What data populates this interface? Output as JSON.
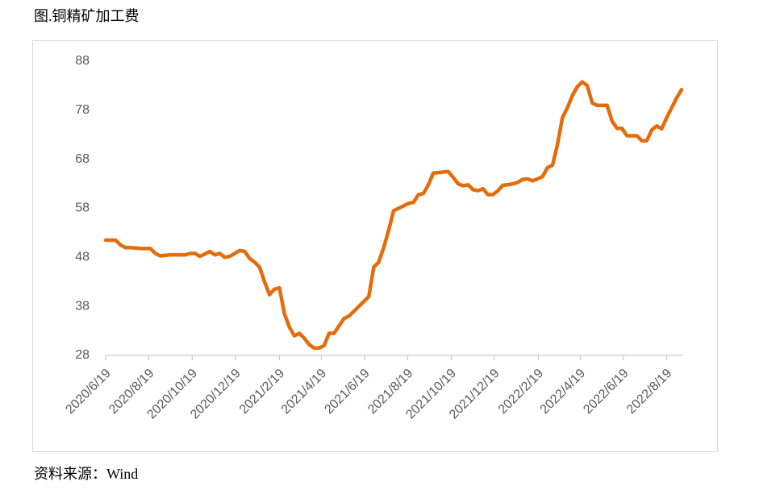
{
  "chart_data": {
    "type": "line",
    "title": "图.铜精矿加工费",
    "source": "资料来源：Wind",
    "x": [
      "2020/6/19",
      "2020/6/26",
      "2020/7/3",
      "2020/7/10",
      "2020/7/17",
      "2020/7/24",
      "2020/7/31",
      "2020/8/7",
      "2020/8/14",
      "2020/8/21",
      "2020/8/28",
      "2020/9/4",
      "2020/9/11",
      "2020/9/18",
      "2020/9/25",
      "2020/10/2",
      "2020/10/9",
      "2020/10/16",
      "2020/10/23",
      "2020/10/30",
      "2020/11/6",
      "2020/11/13",
      "2020/11/20",
      "2020/11/27",
      "2020/12/4",
      "2020/12/11",
      "2020/12/18",
      "2020/12/25",
      "2021/1/1",
      "2021/1/8",
      "2021/1/15",
      "2021/1/22",
      "2021/1/29",
      "2021/2/5",
      "2021/2/12",
      "2021/2/19",
      "2021/2/26",
      "2021/3/5",
      "2021/3/12",
      "2021/3/19",
      "2021/3/26",
      "2021/4/2",
      "2021/4/9",
      "2021/4/16",
      "2021/4/23",
      "2021/4/30",
      "2021/5/7",
      "2021/5/14",
      "2021/5/21",
      "2021/5/28",
      "2021/6/4",
      "2021/6/11",
      "2021/6/18",
      "2021/6/25",
      "2021/7/2",
      "2021/7/9",
      "2021/7/16",
      "2021/7/23",
      "2021/7/30",
      "2021/8/6",
      "2021/8/13",
      "2021/8/20",
      "2021/8/27",
      "2021/9/3",
      "2021/9/10",
      "2021/9/17",
      "2021/9/24",
      "2021/10/1",
      "2021/10/8",
      "2021/10/15",
      "2021/10/22",
      "2021/10/29",
      "2021/11/5",
      "2021/11/12",
      "2021/11/19",
      "2021/11/26",
      "2021/12/3",
      "2021/12/10",
      "2021/12/17",
      "2021/12/24",
      "2021/12/31",
      "2022/1/7",
      "2022/1/14",
      "2022/1/21",
      "2022/1/28",
      "2022/2/4",
      "2022/2/11",
      "2022/2/18",
      "2022/2/25",
      "2022/3/4",
      "2022/3/11",
      "2022/3/18",
      "2022/3/25",
      "2022/4/1",
      "2022/4/8",
      "2022/4/15",
      "2022/4/22",
      "2022/4/29",
      "2022/5/6",
      "2022/5/13",
      "2022/5/20",
      "2022/5/27",
      "2022/6/3",
      "2022/6/10",
      "2022/6/17",
      "2022/6/24",
      "2022/7/1",
      "2022/7/8",
      "2022/7/15",
      "2022/7/22",
      "2022/7/29",
      "2022/8/5",
      "2022/8/12",
      "2022/8/19",
      "2022/8/26",
      "2022/9/2",
      "2022/9/9"
    ],
    "series": [
      {
        "name": "铜精矿加工费",
        "color": "#e46c0a",
        "values": [
          51.5,
          51.5,
          51.5,
          50.5,
          50.0,
          50.0,
          49.9,
          49.8,
          49.8,
          49.8,
          48.8,
          48.3,
          48.4,
          48.5,
          48.5,
          48.5,
          48.5,
          48.8,
          48.8,
          48.2,
          48.7,
          49.2,
          48.5,
          48.8,
          48.0,
          48.2,
          48.8,
          49.4,
          49.2,
          47.8,
          47.0,
          46.0,
          43.0,
          40.4,
          41.5,
          41.8,
          36.5,
          33.8,
          32.0,
          32.5,
          31.5,
          30.2,
          29.5,
          29.5,
          30.0,
          32.5,
          32.5,
          34.0,
          35.5,
          36.0,
          37.0,
          38.0,
          39.0,
          40.0,
          46.0,
          47.0,
          50.0,
          53.5,
          57.5,
          58.0,
          58.5,
          59.0,
          59.2,
          60.8,
          61.0,
          62.8,
          65.2,
          65.3,
          65.4,
          65.5,
          64.3,
          63.0,
          62.6,
          62.8,
          61.8,
          61.6,
          62.0,
          60.8,
          60.8,
          61.6,
          62.7,
          62.8,
          63.0,
          63.3,
          63.9,
          64.0,
          63.6,
          64.0,
          64.5,
          66.3,
          66.8,
          71.0,
          76.5,
          78.5,
          81.0,
          82.8,
          83.8,
          83.0,
          79.5,
          79.0,
          79.0,
          79.0,
          75.8,
          74.3,
          74.3,
          72.8,
          72.8,
          72.8,
          71.8,
          71.8,
          74.0,
          74.8,
          74.2,
          76.5,
          78.5,
          80.5,
          82.2
        ]
      }
    ],
    "xlim": [
      "2020/6/19",
      "2022/9/9"
    ],
    "xticks": [
      "2020/6/19",
      "2020/8/19",
      "2020/10/19",
      "2020/12/19",
      "2021/2/19",
      "2021/4/19",
      "2021/6/19",
      "2021/8/19",
      "2021/10/19",
      "2021/12/19",
      "2022/2/19",
      "2022/4/19",
      "2022/6/19",
      "2022/8/19"
    ],
    "ylim": [
      28,
      88
    ],
    "yticks": [
      28,
      38,
      48,
      58,
      68,
      78,
      88
    ],
    "grid": false
  }
}
